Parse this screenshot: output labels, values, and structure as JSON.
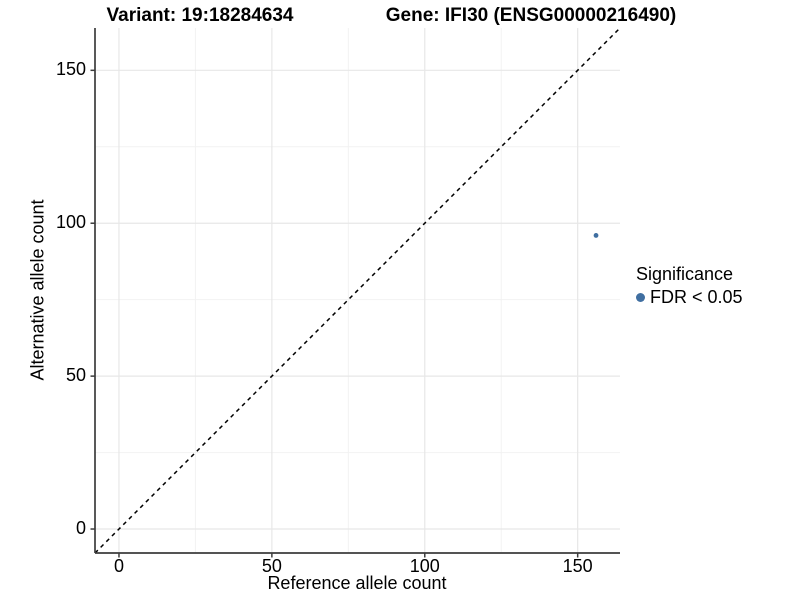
{
  "chart_data": {
    "type": "scatter",
    "titles": {
      "left": "Variant: 19:18284634",
      "right": "Gene: IFI30 (ENSG00000216490)"
    },
    "xlabel": "Reference allele count",
    "ylabel": "Alternative allele count",
    "xticks": [
      "0",
      "50",
      "100",
      "150"
    ],
    "yticks": [
      "0",
      "50",
      "100",
      "150"
    ],
    "xtick_values": [
      0,
      50,
      100,
      150
    ],
    "ytick_values": [
      0,
      50,
      100,
      150
    ],
    "minor_tick_values": [
      25,
      75,
      125
    ],
    "xlim": [
      -7.84,
      163.84
    ],
    "ylim": [
      -7.84,
      163.84
    ],
    "grid": true,
    "points": [
      {
        "x": 156,
        "y": 96,
        "series": "FDR < 0.05"
      }
    ],
    "identity_line": {
      "style": "dashed",
      "slope": 1,
      "intercept": 0,
      "color": "#000000"
    },
    "colors": {
      "point": "#406fa1",
      "grid_major": "#e7e7e7",
      "grid_minor": "#f2f2f2",
      "axis": "#3c3c3c",
      "text": "#000000"
    },
    "legend": {
      "title": "Significance",
      "position": "right",
      "items": [
        {
          "label": "FDR < 0.05",
          "color": "#406fa1",
          "marker": "circle"
        }
      ]
    }
  }
}
